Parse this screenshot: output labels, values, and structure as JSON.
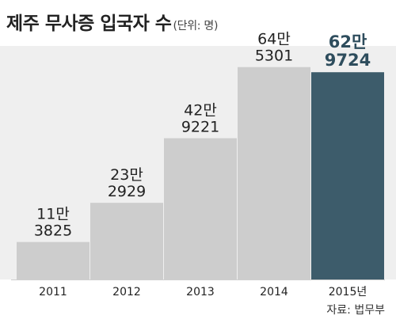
{
  "title": "제주 무사증 입국자 수",
  "unit": "(단위: 명)",
  "source": "자료: 법무부",
  "colors": {
    "bar": "#cdcdcd",
    "highlight_bar": "#3d5c6b",
    "label": "#222222",
    "highlight_label": "#2e4d5d",
    "background": "#efefef"
  },
  "chart_data": {
    "type": "bar",
    "categories": [
      "2011",
      "2012",
      "2013",
      "2014",
      "2015년"
    ],
    "values": [
      113825,
      232929,
      429221,
      645301,
      629724
    ],
    "value_labels": [
      [
        "11만",
        "3825"
      ],
      [
        "23만",
        "2929"
      ],
      [
        "42만",
        "9221"
      ],
      [
        "64만",
        "5301"
      ],
      [
        "62만",
        "9724"
      ]
    ],
    "highlight_index": 4,
    "title": "제주 무사증 입국자 수",
    "xlabel": "",
    "ylabel": "",
    "ylim": [
      0,
      700000
    ],
    "grid": false,
    "legend": "none"
  }
}
